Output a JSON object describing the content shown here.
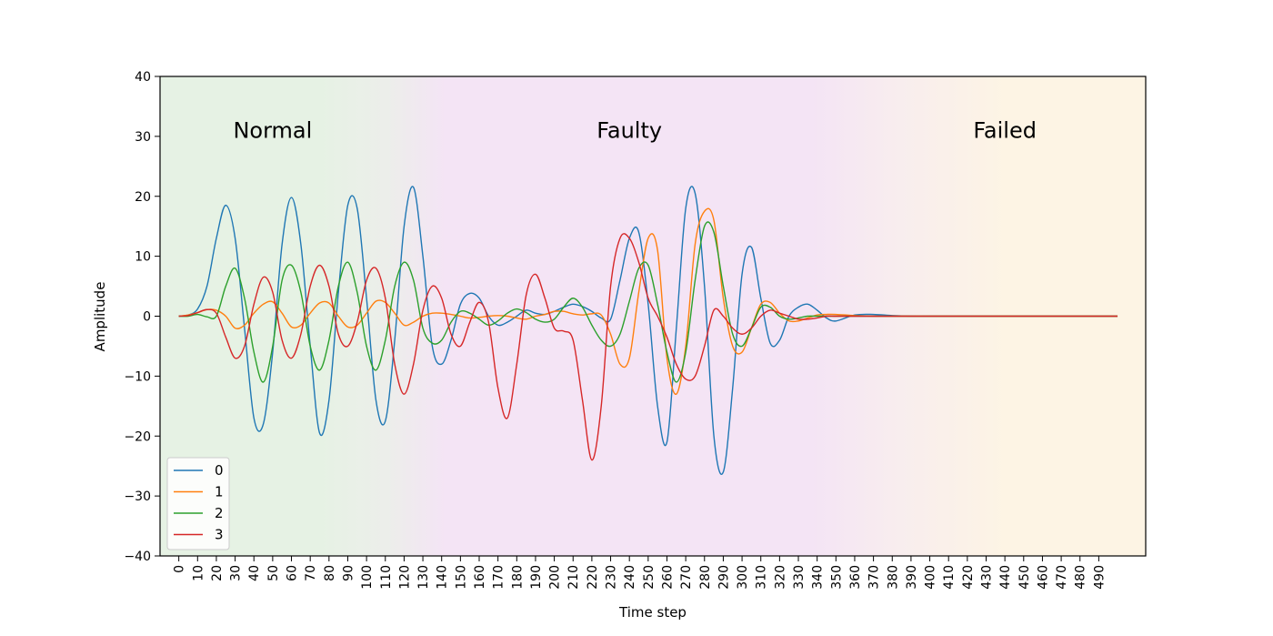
{
  "chart_data": {
    "type": "line",
    "title": "",
    "xlabel": "Time step",
    "ylabel": "Amplitude",
    "xlim": [
      -10,
      515
    ],
    "ylim": [
      -40,
      40
    ],
    "x_ticks": [
      0,
      10,
      20,
      30,
      40,
      50,
      60,
      70,
      80,
      90,
      100,
      110,
      120,
      130,
      140,
      150,
      160,
      170,
      180,
      190,
      200,
      210,
      220,
      230,
      240,
      250,
      260,
      270,
      280,
      290,
      300,
      310,
      320,
      330,
      340,
      350,
      360,
      370,
      380,
      390,
      400,
      410,
      420,
      430,
      440,
      450,
      460,
      470,
      480,
      490
    ],
    "x_tick_labels": [
      "0",
      "10",
      "20",
      "30",
      "40",
      "50",
      "60",
      "70",
      "80",
      "90",
      "100",
      "110",
      "120",
      "130",
      "140",
      "150",
      "160",
      "170",
      "180",
      "190",
      "200",
      "210",
      "220",
      "230",
      "240",
      "250",
      "260",
      "270",
      "280",
      "290",
      "300",
      "310",
      "320",
      "330",
      "340",
      "350",
      "360",
      "370",
      "380",
      "390",
      "400",
      "410",
      "420",
      "430",
      "440",
      "450",
      "460",
      "470",
      "480",
      "490"
    ],
    "y_ticks": [
      -40,
      -30,
      -20,
      -10,
      0,
      10,
      20,
      30,
      40
    ],
    "y_tick_labels": [
      "−40",
      "−30",
      "−20",
      "−10",
      "0",
      "10",
      "20",
      "30",
      "40"
    ],
    "grid": false,
    "legend": {
      "placement": "lower-left",
      "entries": [
        "0",
        "1",
        "2",
        "3"
      ]
    },
    "regions": [
      {
        "label": "Normal",
        "x_start": -10,
        "x_end": 110,
        "color": "#e6f2e4",
        "label_x": 50
      },
      {
        "label": "Faulty",
        "x_start": 110,
        "x_end": 345,
        "color": "#f4e4f5",
        "label_x": 240
      },
      {
        "label": "Failed",
        "x_start": 345,
        "x_end": 515,
        "color": "#fdf4e4",
        "label_x": 440
      }
    ],
    "region_label_y": 31,
    "series": [
      {
        "name": "0",
        "color": "#1f77b4",
        "x": [
          0,
          5,
          10,
          15,
          20,
          25,
          30,
          35,
          40,
          45,
          50,
          55,
          60,
          65,
          70,
          75,
          80,
          85,
          90,
          95,
          100,
          105,
          110,
          115,
          120,
          125,
          130,
          135,
          140,
          145,
          150,
          155,
          160,
          165,
          170,
          175,
          180,
          185,
          190,
          195,
          200,
          205,
          210,
          215,
          220,
          225,
          230,
          235,
          240,
          245,
          250,
          255,
          260,
          265,
          270,
          275,
          280,
          285,
          290,
          295,
          300,
          305,
          310,
          315,
          320,
          325,
          330,
          335,
          340,
          345,
          350,
          360,
          370,
          380,
          390,
          400,
          420,
          450,
          480,
          500
        ],
        "y": [
          0,
          0.2,
          1.2,
          5,
          13,
          18.5,
          13,
          -2,
          -17,
          -18,
          -6,
          12,
          19.8,
          12,
          -5,
          -19.5,
          -14,
          4,
          18.5,
          18,
          3,
          -14,
          -17.5,
          -4,
          15,
          21.5,
          10,
          -5,
          -8,
          -4,
          2,
          3.8,
          3,
          0,
          -1.5,
          -1,
          0,
          1,
          0.5,
          0.3,
          0.8,
          1.5,
          2,
          1.6,
          0.8,
          -0.3,
          -0.5,
          6,
          13,
          14,
          2,
          -15,
          -21,
          -2,
          18,
          20.5,
          5,
          -20,
          -26,
          -12,
          7,
          11.5,
          3,
          -4.5,
          -4,
          0,
          1.5,
          2,
          1,
          -0.3,
          -0.8,
          0.2,
          0.3,
          0.1,
          0,
          0,
          0,
          0,
          0,
          0
        ]
      },
      {
        "name": "1",
        "color": "#ff7f0e",
        "x": [
          0,
          5,
          10,
          15,
          20,
          25,
          30,
          35,
          40,
          45,
          50,
          55,
          60,
          65,
          70,
          75,
          80,
          85,
          90,
          95,
          100,
          105,
          110,
          115,
          120,
          125,
          130,
          135,
          140,
          145,
          150,
          155,
          160,
          165,
          170,
          175,
          180,
          185,
          190,
          195,
          200,
          205,
          210,
          215,
          220,
          225,
          230,
          235,
          240,
          245,
          250,
          255,
          260,
          265,
          270,
          275,
          280,
          285,
          290,
          295,
          300,
          305,
          310,
          315,
          320,
          325,
          330,
          335,
          340,
          345,
          350,
          360,
          370,
          380,
          390,
          400,
          420,
          450,
          480,
          500
        ],
        "y": [
          0,
          0.2,
          0.6,
          1.1,
          1,
          0,
          -2,
          -1.5,
          0.5,
          2,
          2.4,
          0.5,
          -1.8,
          -1.5,
          0.5,
          2.2,
          2.2,
          0,
          -1.8,
          -1.5,
          0.5,
          2.5,
          2.3,
          0.5,
          -1.5,
          -1,
          0,
          0.5,
          0.5,
          0.3,
          0,
          -0.3,
          -0.2,
          0,
          0.1,
          0,
          -0.3,
          -0.5,
          0,
          0.3,
          0.8,
          0.8,
          0.4,
          0.2,
          0.4,
          0.2,
          -3,
          -8,
          -7,
          4,
          13,
          11,
          -7,
          -13,
          -5,
          12,
          17.5,
          16,
          3,
          -5,
          -6,
          -2,
          2,
          2.3,
          0.5,
          -0.8,
          -0.8,
          -0.3,
          0.2,
          0.3,
          0.3,
          0.1,
          0,
          0,
          0,
          0,
          0,
          0,
          0,
          0
        ]
      },
      {
        "name": "2",
        "color": "#2ca02c",
        "x": [
          0,
          5,
          10,
          15,
          20,
          25,
          30,
          35,
          40,
          45,
          50,
          55,
          60,
          65,
          70,
          75,
          80,
          85,
          90,
          95,
          100,
          105,
          110,
          115,
          120,
          125,
          130,
          135,
          140,
          145,
          150,
          155,
          160,
          165,
          170,
          175,
          180,
          185,
          190,
          195,
          200,
          205,
          210,
          215,
          220,
          225,
          230,
          235,
          240,
          245,
          250,
          255,
          260,
          265,
          270,
          275,
          280,
          285,
          290,
          295,
          300,
          305,
          310,
          315,
          320,
          325,
          330,
          335,
          340,
          345,
          350,
          360,
          370,
          380,
          390,
          400,
          420,
          450,
          480,
          500
        ],
        "y": [
          0,
          0,
          0.3,
          -0.1,
          0,
          5,
          8,
          3,
          -6,
          -11,
          -5,
          6,
          8.5,
          4,
          -5,
          -9,
          -4,
          5,
          9,
          4,
          -5,
          -9,
          -4,
          5,
          9,
          6,
          -2,
          -4.5,
          -4,
          -1,
          0.8,
          0.5,
          -0.5,
          -1.5,
          -0.8,
          0.5,
          1.2,
          0.6,
          -0.5,
          -1,
          -0.5,
          1.5,
          3,
          1.5,
          -1.5,
          -4,
          -5,
          -3,
          2.5,
          8,
          8.5,
          2,
          -6,
          -11,
          -6,
          6,
          15,
          14,
          5,
          -3,
          -5,
          -2,
          1.5,
          1.5,
          0,
          -0.5,
          -0.3,
          0,
          0,
          0,
          0,
          0,
          0,
          0,
          0,
          0,
          0,
          0,
          0,
          0
        ]
      },
      {
        "name": "3",
        "color": "#d62728",
        "x": [
          0,
          5,
          10,
          15,
          20,
          25,
          30,
          35,
          40,
          45,
          50,
          55,
          60,
          65,
          70,
          75,
          80,
          85,
          90,
          95,
          100,
          105,
          110,
          115,
          120,
          125,
          130,
          135,
          140,
          145,
          150,
          155,
          160,
          165,
          170,
          175,
          180,
          185,
          190,
          195,
          200,
          205,
          210,
          215,
          220,
          225,
          230,
          235,
          240,
          245,
          250,
          255,
          260,
          265,
          270,
          275,
          280,
          285,
          290,
          295,
          300,
          305,
          310,
          315,
          320,
          325,
          330,
          335,
          340,
          345,
          350,
          360,
          370,
          380,
          390,
          400,
          420,
          450,
          480,
          500
        ],
        "y": [
          0,
          0.1,
          0.6,
          1.1,
          0.5,
          -3.5,
          -7,
          -5,
          2,
          6.5,
          4,
          -4,
          -7,
          -3,
          5,
          8.5,
          5,
          -3,
          -5,
          -1,
          6,
          8,
          3,
          -8,
          -13,
          -8,
          1,
          5,
          3,
          -3,
          -5,
          -1,
          2.3,
          -1,
          -12,
          -17,
          -8,
          3.5,
          7,
          3,
          -2,
          -2.5,
          -4,
          -14,
          -24,
          -15,
          5,
          13,
          13,
          9,
          3,
          0,
          -3.5,
          -8,
          -10.5,
          -10,
          -5,
          1,
          0,
          -2,
          -3,
          -2,
          0,
          1,
          0.5,
          0,
          -0.5,
          -0.5,
          -0.3,
          0,
          0,
          0,
          0,
          0,
          0,
          0,
          0,
          0,
          0,
          0
        ]
      }
    ]
  }
}
